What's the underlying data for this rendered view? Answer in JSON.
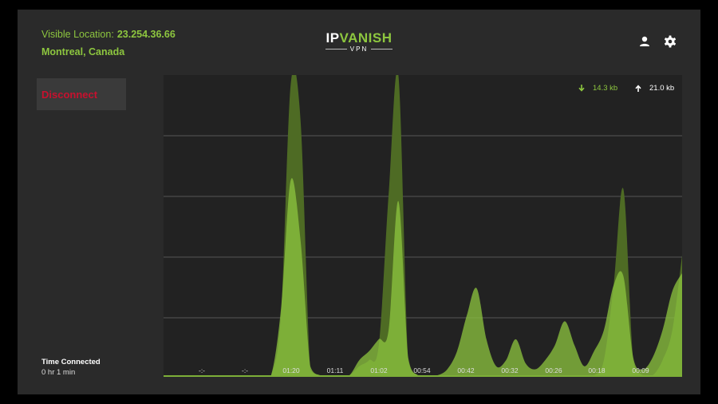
{
  "location": {
    "label": "Visible Location:",
    "ip": "23.254.36.66",
    "city": "Montreal, Canada"
  },
  "brand": {
    "name_ip": "IP",
    "name_rest": "VANISH",
    "sub": "VPN"
  },
  "icons": {
    "user": "user-icon",
    "settings": "gear-icon",
    "download": "arrow-down-icon",
    "upload": "arrow-up-icon"
  },
  "disconnect_label": "Disconnect",
  "time_connected": {
    "label": "Time Connected",
    "value": "0 hr 1 min"
  },
  "traffic": {
    "download": "14.3 kb",
    "upload": "21.0 kb"
  },
  "colors": {
    "accent": "#8dc63f",
    "danger": "#c8102e",
    "panel": "#2a2a2a",
    "graph_bg": "#222222"
  },
  "chart_data": {
    "type": "area",
    "x_tick_labels": [
      "-:-",
      "-:-",
      "01:20",
      "01:11",
      "01:02",
      "00:54",
      "00:42",
      "00:32",
      "00:26",
      "00:18",
      "00:09"
    ],
    "grid": true,
    "series": [
      {
        "name": "14.3 kb",
        "color": "#4e6b24",
        "opacity": 1.0,
        "values": [
          0,
          0,
          0,
          0,
          0,
          0,
          0,
          0,
          0,
          0,
          0,
          0,
          0.2,
          0.97,
          0.85,
          0.02,
          0,
          0,
          0,
          0,
          0.03,
          0.05,
          0.1,
          0.6,
          1.0,
          0.05,
          0,
          0,
          0,
          0,
          0,
          0,
          0,
          0,
          0,
          0,
          0,
          0,
          0,
          0,
          0,
          0,
          0,
          0,
          0,
          0.05,
          0.3,
          0.62,
          0.05,
          0,
          0,
          0.05,
          0.15,
          0.4
        ]
      },
      {
        "name": "21.0 kb",
        "color": "#8dc63f",
        "opacity": 0.75,
        "values": [
          0,
          0,
          0,
          0,
          0,
          0,
          0,
          0,
          0,
          0,
          0,
          0,
          0.22,
          0.65,
          0.45,
          0.03,
          0,
          0,
          0,
          0,
          0.05,
          0.08,
          0.12,
          0.15,
          0.58,
          0.06,
          0,
          0,
          0,
          0.02,
          0.08,
          0.2,
          0.29,
          0.12,
          0.03,
          0.05,
          0.12,
          0.04,
          0.02,
          0.05,
          0.1,
          0.18,
          0.1,
          0.03,
          0.08,
          0.15,
          0.3,
          0.33,
          0.06,
          0.02,
          0.06,
          0.15,
          0.28,
          0.34
        ]
      }
    ]
  }
}
